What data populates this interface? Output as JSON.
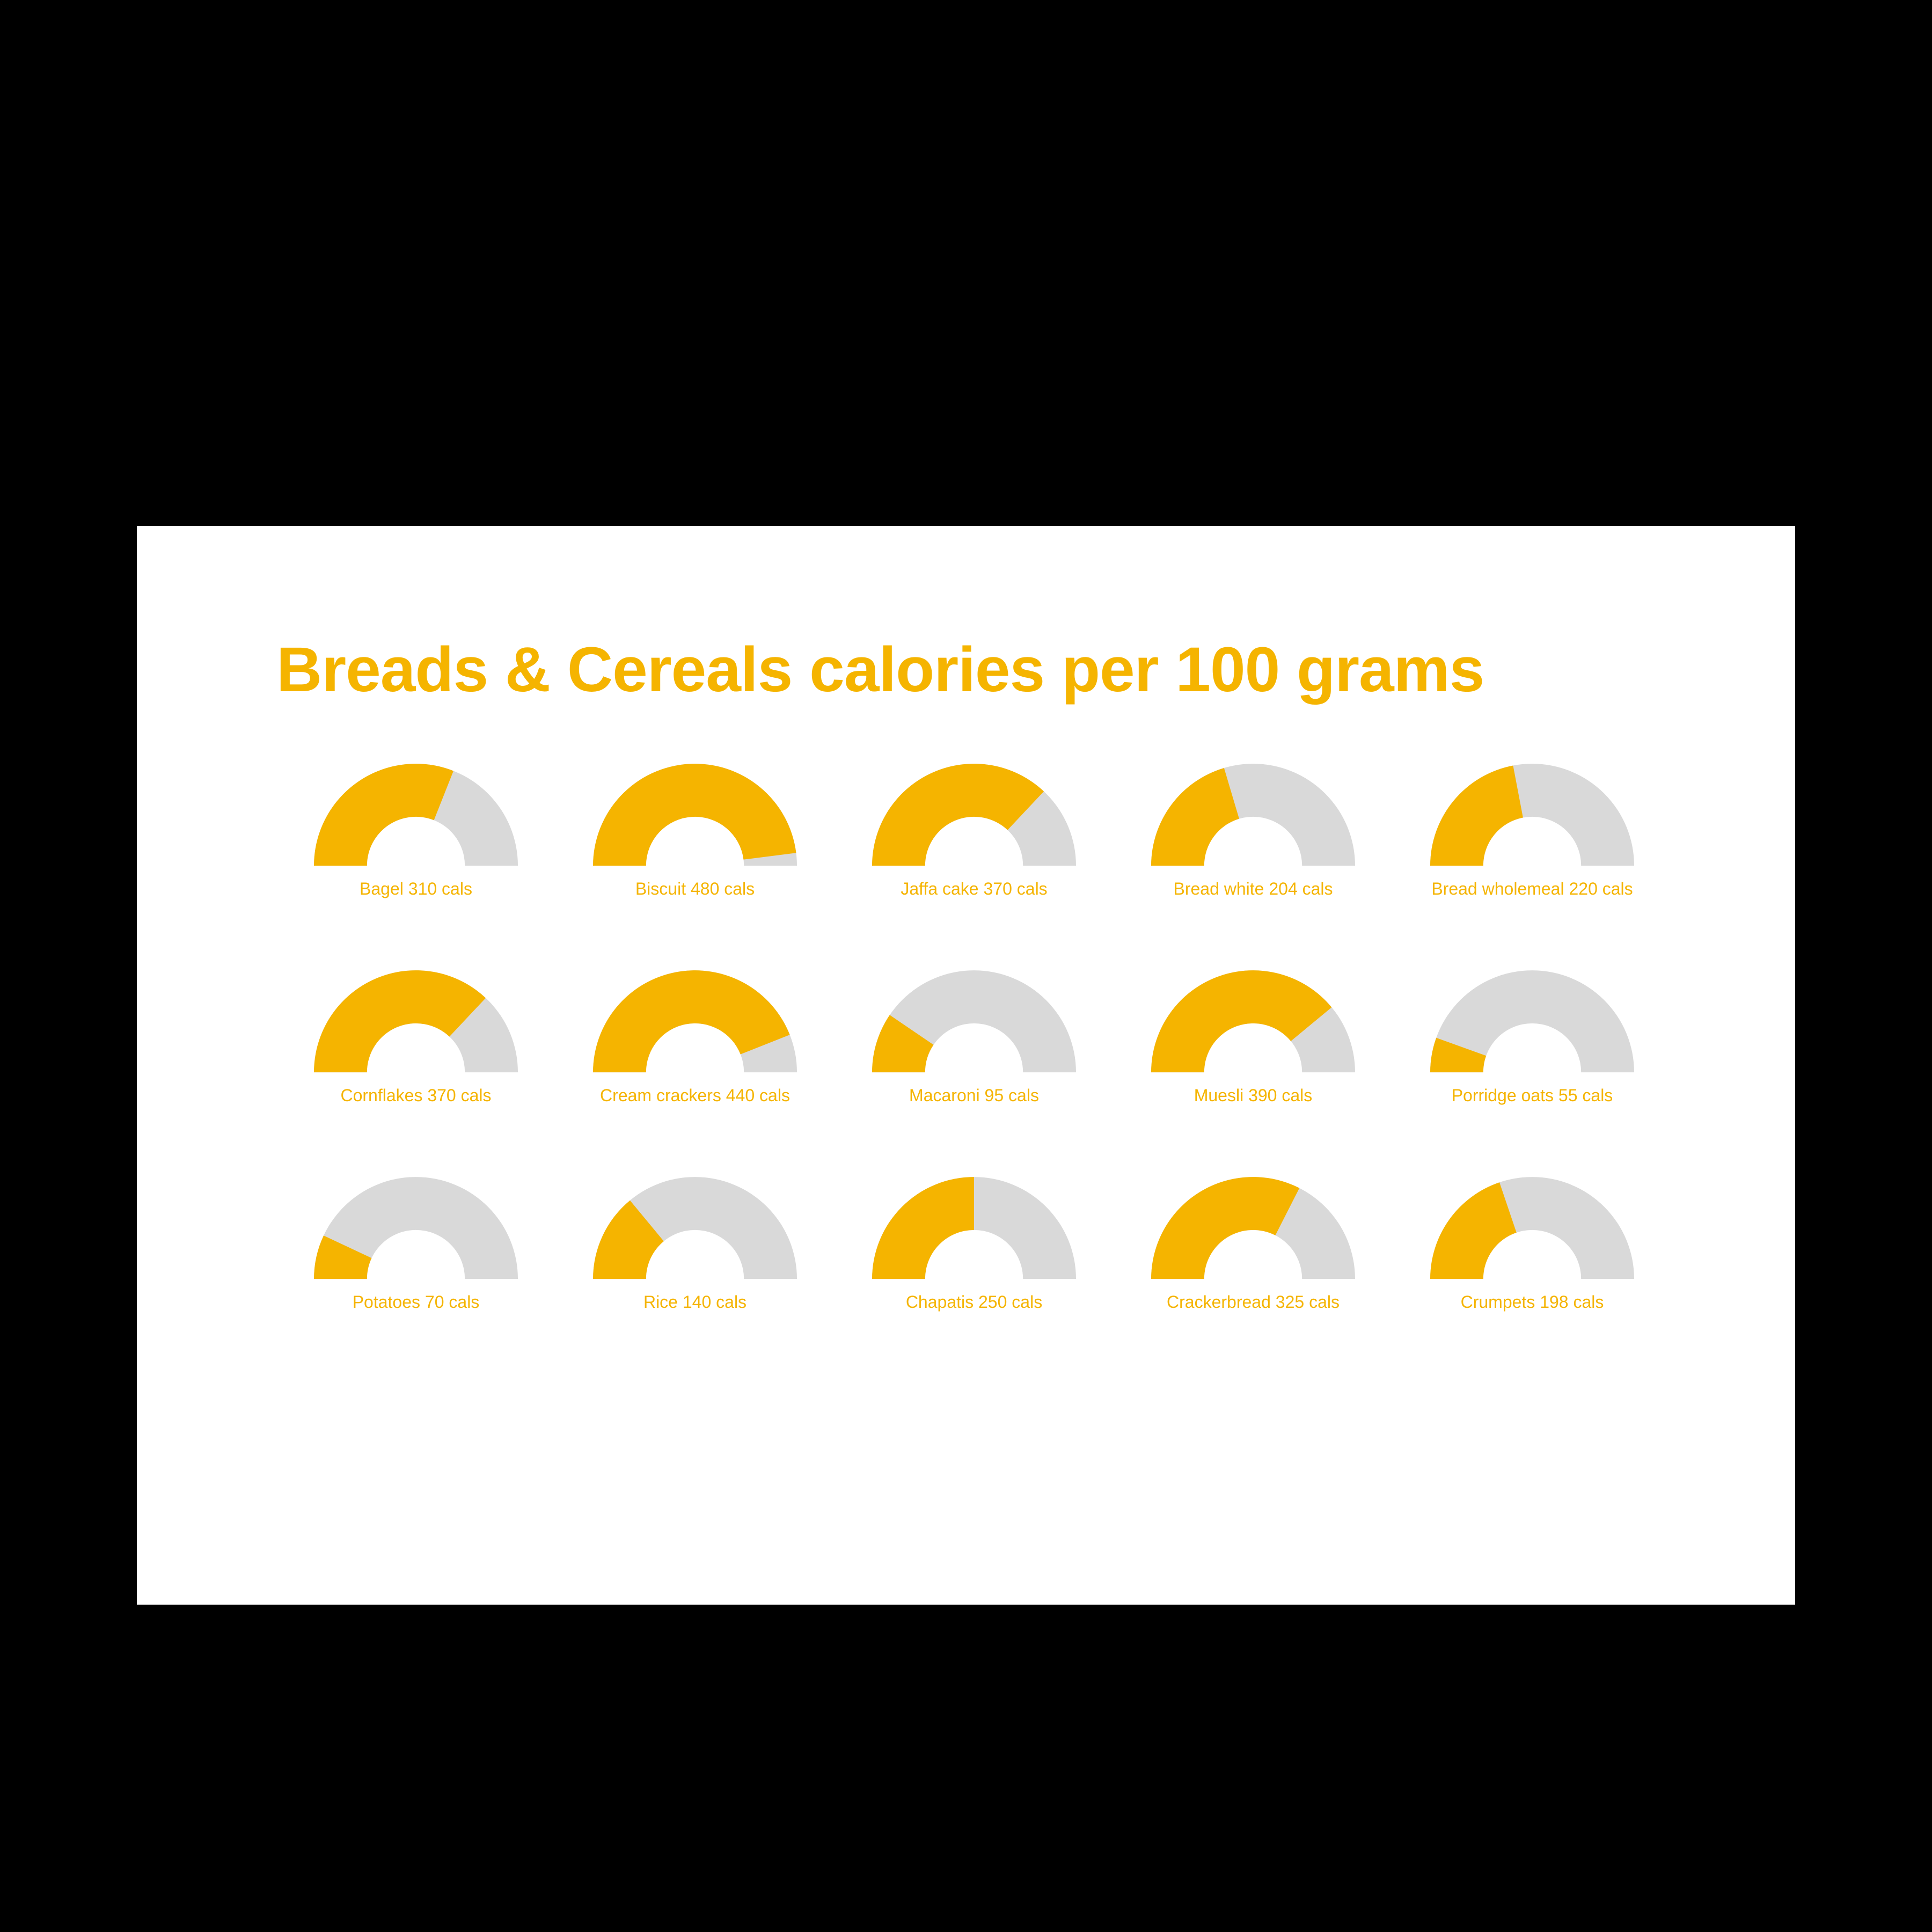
{
  "title": "Breads & Cereals calories per 100 grams",
  "colors": {
    "title": "#f5b400",
    "label": "#f5b400",
    "fill": "#f5b400",
    "track": "#d9d9d9",
    "panel_bg": "#ffffff",
    "page_bg": "#000000"
  },
  "chart": {
    "type": "half-donut-gauge",
    "max_value": 500,
    "outer_radius": 100,
    "inner_radius": 48,
    "label_fontsize": 32,
    "title_fontsize": 118,
    "columns": 5,
    "rows": 3
  },
  "items": [
    {
      "name": "Bagel",
      "value": 310,
      "label": "Bagel 310 cals"
    },
    {
      "name": "Biscuit",
      "value": 480,
      "label": "Biscuit 480 cals"
    },
    {
      "name": "Jaffa cake",
      "value": 370,
      "label": "Jaffa cake 370 cals"
    },
    {
      "name": "Bread white",
      "value": 204,
      "label": "Bread white 204 cals"
    },
    {
      "name": "Bread wholemeal",
      "value": 220,
      "label": "Bread wholemeal 220 cals"
    },
    {
      "name": "Cornflakes",
      "value": 370,
      "label": "Cornflakes 370 cals"
    },
    {
      "name": "Cream crackers",
      "value": 440,
      "label": "Cream crackers 440 cals"
    },
    {
      "name": "Macaroni",
      "value": 95,
      "label": "Macaroni 95 cals"
    },
    {
      "name": "Muesli",
      "value": 390,
      "label": "Muesli 390 cals"
    },
    {
      "name": "Porridge oats",
      "value": 55,
      "label": "Porridge oats 55 cals"
    },
    {
      "name": "Potatoes",
      "value": 70,
      "label": "Potatoes 70 cals"
    },
    {
      "name": "Rice",
      "value": 140,
      "label": "Rice 140 cals"
    },
    {
      "name": "Chapatis",
      "value": 250,
      "label": "Chapatis 250 cals"
    },
    {
      "name": "Crackerbread",
      "value": 325,
      "label": "Crackerbread 325 cals"
    },
    {
      "name": "Crumpets",
      "value": 198,
      "label": "Crumpets 198 cals"
    }
  ]
}
